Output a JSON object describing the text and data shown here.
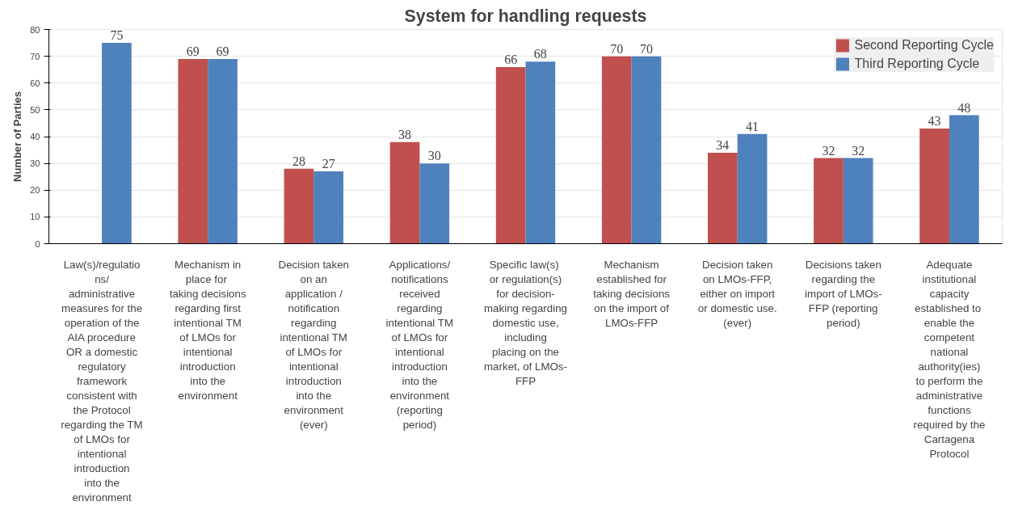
{
  "chart_data": {
    "type": "bar",
    "title": "System for handling requests",
    "ylabel": "Number of Parties",
    "categories": [
      "Law(s)/regulations/ administrative measures for the operation of the AIA procedure  OR a domestic regulatory framework consistent with the Protocol regarding the TM of LMOs for intentional introduction into the environment",
      "Mechanism in place  for taking decisions regarding first intentional TM of LMOs for intentional introduction into the environment",
      "Decision taken on an application / notification regarding intentional TM of LMOs for intentional introduction into the environment (ever)",
      "Applications/ notifications received regarding intentional TM of LMOs for intentional introduction into the environment (reporting period)",
      "Specific  law(s) or regulation(s) for decision-making regarding domestic use, including placing on the market, of LMOs-FFP",
      "Mechanism established for taking decisions on the import of LMOs-FFP",
      "Decision taken on LMOs-FFP, either on import or domestic use. (ever)",
      "Decisions taken regarding the import of LMOs-FFP (reporting period)",
      "Adequate institutional capacity established  to enable the competent national authority(ies) to perform the administrative functions required by the Cartagena Protocol"
    ],
    "series": [
      {
        "name": "Second Reporting Cycle",
        "color": "#c0504d",
        "values": [
          null,
          69,
          28,
          38,
          66,
          70,
          34,
          32,
          43
        ]
      },
      {
        "name": "Third Reporting Cycle",
        "color": "#4f81bd",
        "values": [
          75,
          69,
          27,
          30,
          68,
          70,
          41,
          32,
          48
        ]
      }
    ],
    "ylim": [
      0,
      80
    ],
    "yticks": [
      0,
      10,
      20,
      30,
      40,
      50,
      60,
      70,
      80
    ],
    "grid": "y",
    "legend": "top right",
    "data_labels": true
  }
}
